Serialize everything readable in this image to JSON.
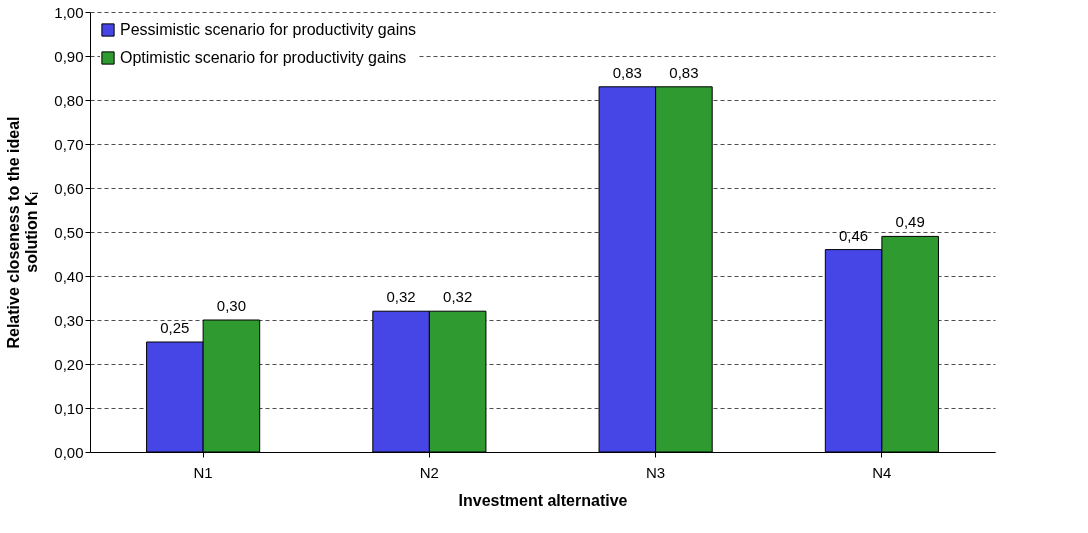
{
  "chart_data": {
    "type": "bar",
    "xlabel": "Investment alternative",
    "ylabel": "Relative closeness to the ideal solution Kᵢ",
    "categories": [
      "N1",
      "N2",
      "N3",
      "N4"
    ],
    "series": [
      {
        "name": "Pessimistic scenario for productivity gains",
        "color": "#4646e6",
        "values": [
          0.25,
          0.32,
          0.83,
          0.46
        ],
        "value_labels": [
          "0,25",
          "0,32",
          "0,83",
          "0,46"
        ]
      },
      {
        "name": "Optimistic scenario for productivity gains",
        "color": "#2f9a2f",
        "values": [
          0.3,
          0.32,
          0.83,
          0.49
        ],
        "value_labels": [
          "0,30",
          "0,32",
          "0,83",
          "0,49"
        ]
      }
    ],
    "ylim": [
      0,
      1
    ],
    "yticks": [
      {
        "value": 0,
        "label": "0,00"
      },
      {
        "value": 0.1,
        "label": "0,10"
      },
      {
        "value": 0.2,
        "label": "0,20"
      },
      {
        "value": 0.3,
        "label": "0,30"
      },
      {
        "value": 0.4,
        "label": "0,40"
      },
      {
        "value": 0.5,
        "label": "0,50"
      },
      {
        "value": 0.6,
        "label": "0,60"
      },
      {
        "value": 0.7,
        "label": "0,70"
      },
      {
        "value": 0.8,
        "label": "0,80"
      },
      {
        "value": 0.9,
        "label": "0,90"
      },
      {
        "value": 1,
        "label": "1,00"
      }
    ],
    "grid": "y",
    "legend": "top left"
  }
}
